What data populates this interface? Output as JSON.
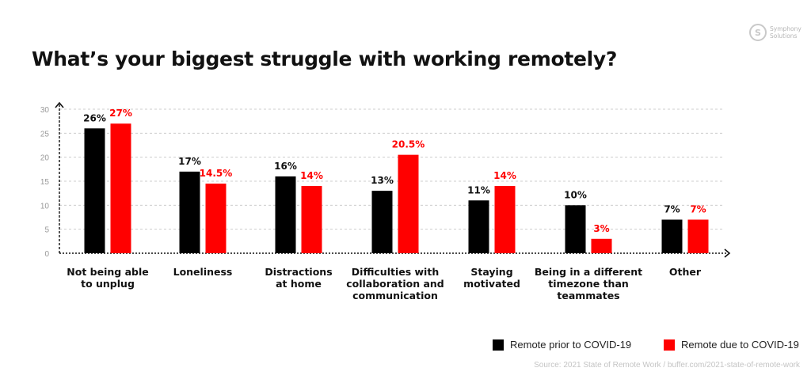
{
  "brand": {
    "line1": "Symphony",
    "line2": "Solutions",
    "icon": "symphony-logo"
  },
  "source": "Source: 2021 State of Remote Work / buffer.com/2021-state-of-remote-work",
  "colors": {
    "prior": "#000000",
    "due": "#ff0000",
    "grid": "#cccccc",
    "text": "#111111"
  },
  "chart_data": {
    "type": "bar",
    "title": "What’s your biggest struggle with working remotely?",
    "categories": [
      [
        "Not being able",
        "to unplug"
      ],
      [
        "Loneliness"
      ],
      [
        "Distractions",
        "at home"
      ],
      [
        "Difficulties with",
        "collaboration and",
        "communication"
      ],
      [
        "Staying",
        "motivated"
      ],
      [
        "Being in a different",
        "timezone than",
        "teammates"
      ],
      [
        "Other"
      ]
    ],
    "series": [
      {
        "name": "Remote prior to COVID-19",
        "values": [
          26,
          17,
          16,
          13,
          11,
          10,
          7
        ],
        "labels": [
          "26%",
          "17%",
          "16%",
          "13%",
          "11%",
          "10%",
          "7%"
        ],
        "color": "#000000"
      },
      {
        "name": "Remote due to COVID-19",
        "values": [
          27,
          14.5,
          14,
          20.5,
          14,
          3,
          7
        ],
        "labels": [
          "27%",
          "14.5%",
          "14%",
          "20.5%",
          "14%",
          "3%",
          "7%"
        ],
        "color": "#ff0000"
      }
    ],
    "yticks": [
      0,
      5,
      10,
      15,
      20,
      25,
      30
    ],
    "ylim": [
      0,
      30
    ],
    "grid": true,
    "legend": "bottom-right"
  }
}
